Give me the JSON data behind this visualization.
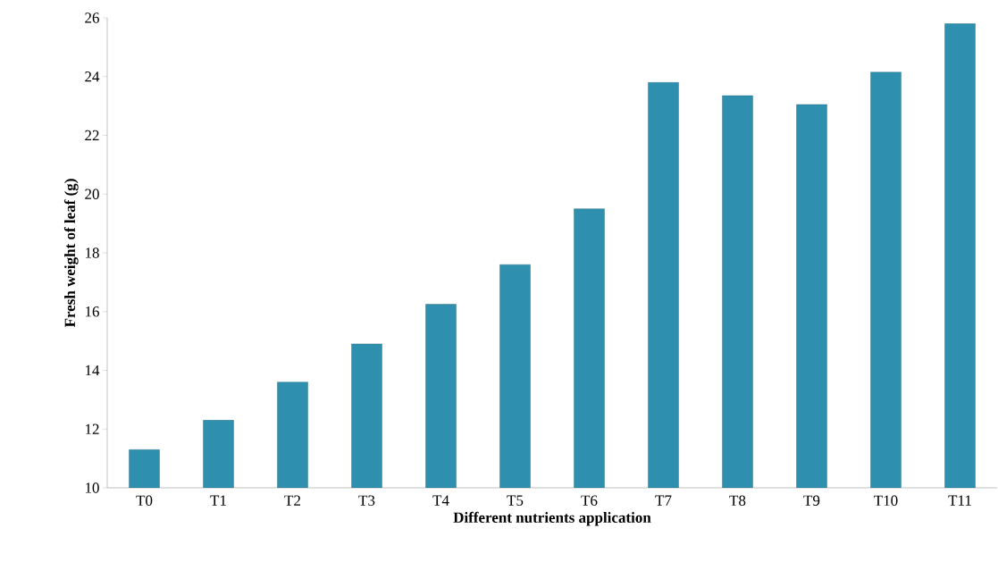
{
  "chart_data": {
    "type": "bar",
    "xlabel": "Different nutrients application",
    "ylabel": "Fresh weight of leaf (g)",
    "categories": [
      "T0",
      "T1",
      "T2",
      "T3",
      "T4",
      "T5",
      "T6",
      "T7",
      "T8",
      "T9",
      "T10",
      "T11"
    ],
    "values": [
      11.3,
      12.3,
      13.6,
      14.9,
      16.25,
      17.6,
      19.5,
      23.8,
      23.35,
      23.05,
      24.15,
      25.8
    ],
    "color": "#2e8fae",
    "ylim": [
      10,
      26
    ],
    "yticks": [
      10,
      12,
      14,
      16,
      18,
      20,
      22,
      24,
      26
    ],
    "grid": false
  }
}
